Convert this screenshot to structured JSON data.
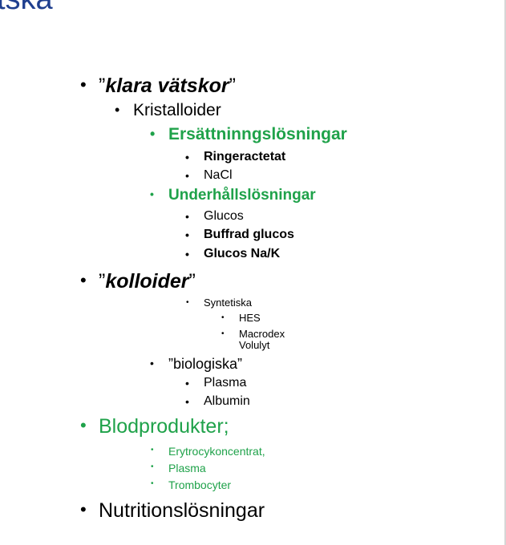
{
  "slide": {
    "title_fragment": "tska",
    "bullet": "•",
    "items": [
      {
        "open": "”",
        "text": "klara vätskor",
        "close": "”"
      },
      {
        "text": "Kristalloider"
      },
      {
        "text": "Ersättninngslösningar"
      },
      {
        "text": "Ringeractetat"
      },
      {
        "text": "NaCl"
      },
      {
        "text": "Underhållslösningar"
      },
      {
        "text": "Glucos"
      },
      {
        "text": "Buffrad glucos"
      },
      {
        "text": "Glucos Na/K"
      },
      {
        "open": "”",
        "text": "kolloider",
        "close": "”"
      },
      {
        "text": "Syntetiska"
      },
      {
        "text": "HES"
      },
      {
        "text": "Macrodex\nVolulyt"
      },
      {
        "text": "”biologiska”"
      },
      {
        "text": "Plasma"
      },
      {
        "text": "Albumin"
      },
      {
        "text": "Blodprodukter;"
      },
      {
        "text": "Erytrocykoncentrat,"
      },
      {
        "text": "Plasma"
      },
      {
        "text": "Trombocyter"
      },
      {
        "text": "Nutritionslösningar"
      }
    ]
  },
  "colors": {
    "green": "#1fa24a",
    "title_blue": "#1f3f8f"
  }
}
